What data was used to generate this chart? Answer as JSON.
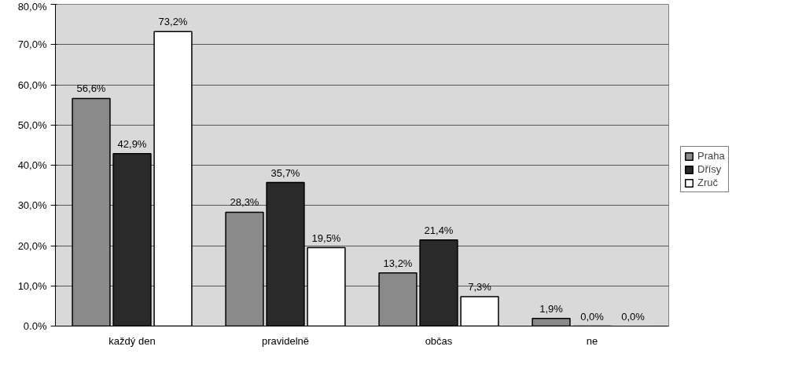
{
  "chart_data": {
    "type": "bar",
    "categories": [
      "každý den",
      "pravidelně",
      "občas",
      "ne"
    ],
    "series": [
      {
        "name": "Praha",
        "color": "#8a8a8a",
        "values": [
          56.6,
          28.3,
          13.2,
          1.9
        ],
        "value_labels": [
          "56,6%",
          "28,3%",
          "13,2%",
          "1,9%"
        ]
      },
      {
        "name": "Dřísy",
        "color": "#2a2a2a",
        "values": [
          42.9,
          35.7,
          21.4,
          0.0
        ],
        "value_labels": [
          "42,9%",
          "35,7%",
          "21,4%",
          "0,0%"
        ]
      },
      {
        "name": "Zruč",
        "color": "#ffffff",
        "values": [
          73.2,
          19.5,
          7.3,
          0.0
        ],
        "value_labels": [
          "73,2%",
          "19,5%",
          "7,3%",
          "0,0%"
        ]
      }
    ],
    "ylim": [
      0,
      80
    ],
    "yticks": [
      {
        "value": 0,
        "label": "0.0%"
      },
      {
        "value": 10,
        "label": "10,0%"
      },
      {
        "value": 20,
        "label": "20,0%"
      },
      {
        "value": 30,
        "label": "30,0%"
      },
      {
        "value": 40,
        "label": "40,0%"
      },
      {
        "value": 50,
        "label": "50,0%"
      },
      {
        "value": 60,
        "label": "60,0%"
      },
      {
        "value": 70,
        "label": "70,0%"
      },
      {
        "value": 80,
        "label": "80,0%"
      }
    ],
    "grid": "y",
    "legend": "right"
  }
}
